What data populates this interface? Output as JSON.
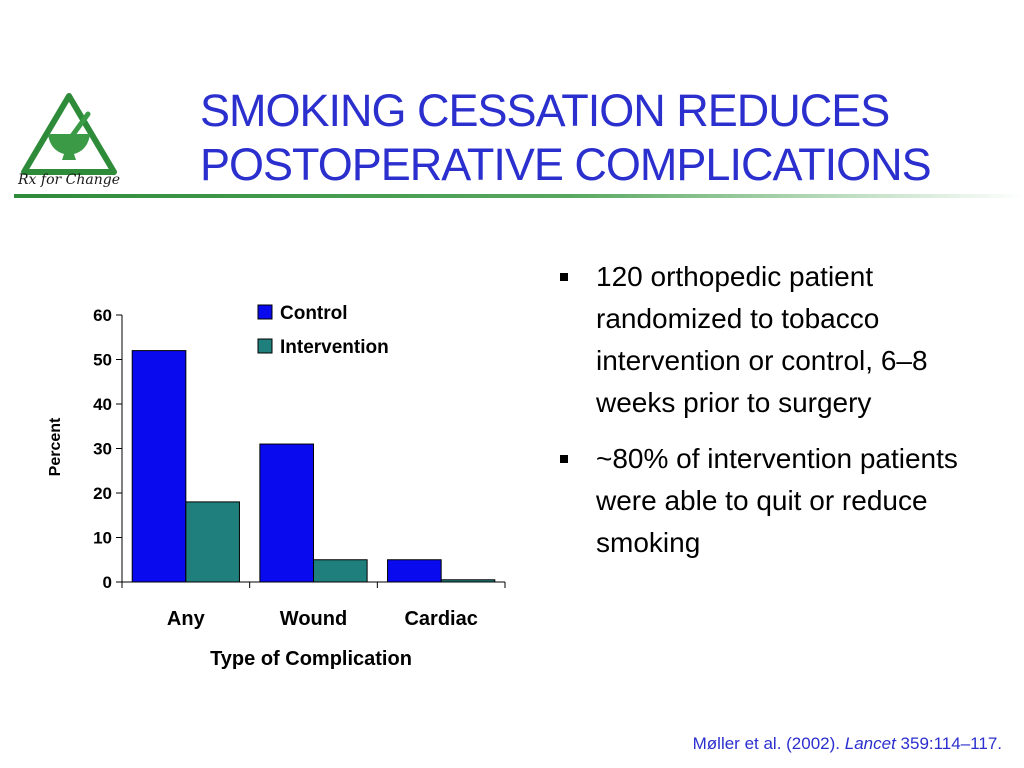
{
  "logo": {
    "text": "Rx for Change",
    "colors": {
      "triangle": "#2e8b3a",
      "mortar": "#3a9a46",
      "text": "#1a1a1a"
    }
  },
  "slide": {
    "title_lines": [
      "SMOKING CESSATION REDUCES",
      "POSTOPERATIVE COMPLICATIONS"
    ],
    "title_color": "#2b2fce"
  },
  "bullets": [
    "120 orthopedic patient randomized to tobacco intervention or control, 6–8 weeks prior to surgery",
    "~80% of intervention patients were able to quit or reduce smoking"
  ],
  "citation": {
    "authors": "Møller et al. (2002).",
    "journal": "Lancet",
    "ref": "359:114–117."
  },
  "chart_data": {
    "type": "bar",
    "categories": [
      "Any",
      "Wound",
      "Cardiac"
    ],
    "series": [
      {
        "name": "Control",
        "values": [
          52,
          31,
          5
        ],
        "color": "#0a0aef"
      },
      {
        "name": "Intervention",
        "values": [
          18,
          5,
          0.5
        ],
        "color": "#1e7f7c"
      }
    ],
    "xlabel": "Type of Complication",
    "ylabel": "Percent",
    "ylim": [
      0,
      60
    ],
    "yticks": [
      0,
      10,
      20,
      30,
      40,
      50,
      60
    ],
    "grid": false,
    "legend": "top-right"
  }
}
